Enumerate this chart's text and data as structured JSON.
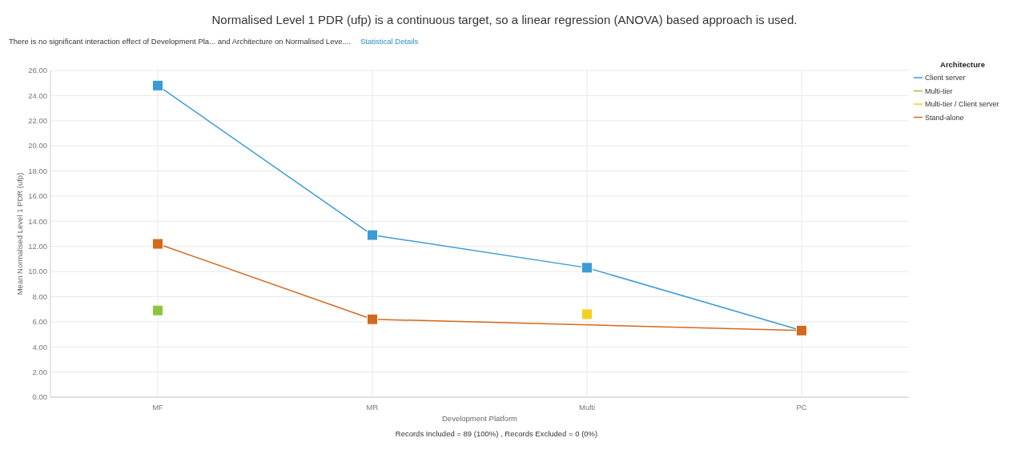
{
  "chart_data": {
    "type": "line",
    "title": "Normalised Level 1 PDR (ufp) is a continuous target, so a linear regression (ANOVA) based approach is used.",
    "subtitle": "There is no significant interaction effect of Development Pla... and Architecture on Normalised Leve....",
    "annotations": [
      "Statistical Details",
      "Records Included = 89 (100%) , Records Excluded = 0 (0%)"
    ],
    "xlabel": "Development Platform",
    "ylabel": "Mean Normalised Level 1 PDR (ufp)",
    "legend_title": "Architecture",
    "categories": [
      "MF",
      "MR",
      "Multi",
      "PC"
    ],
    "series": [
      {
        "name": "Client server",
        "color": "#3a9bd5",
        "values": [
          24.8,
          12.9,
          10.3,
          5.3
        ]
      },
      {
        "name": "Multi-tier",
        "color": "#8cc63e",
        "values": [
          6.9,
          null,
          null,
          null
        ]
      },
      {
        "name": "Multi-tier / Client server",
        "color": "#f5cf1f",
        "values": [
          null,
          null,
          6.6,
          null
        ]
      },
      {
        "name": "Stand-alone",
        "color": "#d2691e",
        "values": [
          12.2,
          6.2,
          null,
          5.3
        ]
      }
    ],
    "ylim": [
      0,
      26
    ],
    "yticks": [
      {
        "value": 0,
        "label": "0.00"
      },
      {
        "value": 2,
        "label": "2.00"
      },
      {
        "value": 4,
        "label": "4.00"
      },
      {
        "value": 6,
        "label": "6.00"
      },
      {
        "value": 8,
        "label": "8.00"
      },
      {
        "value": 10,
        "label": "10.00"
      },
      {
        "value": 12,
        "label": "12.00"
      },
      {
        "value": 14,
        "label": "14.00"
      },
      {
        "value": 16,
        "label": "16.00"
      },
      {
        "value": 18,
        "label": "18.00"
      },
      {
        "value": 20,
        "label": "20.00"
      },
      {
        "value": 22,
        "label": "22.00"
      },
      {
        "value": 24,
        "label": "24.00"
      },
      {
        "value": 26,
        "label": "26.00"
      }
    ],
    "grid": true,
    "legend": "right",
    "marker": "square",
    "line_style": "solid"
  }
}
